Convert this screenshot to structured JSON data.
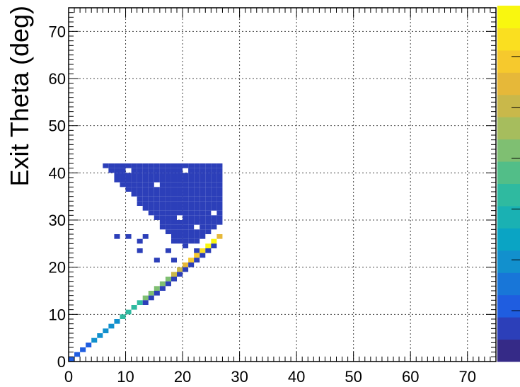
{
  "chart_data": {
    "type": "heatmap",
    "title": "",
    "xlabel": "",
    "ylabel": "Exit Theta (deg)",
    "xlim": [
      0,
      75
    ],
    "ylim": [
      0,
      75
    ],
    "bin_width": 1,
    "xticks": [
      "0",
      "10",
      "20",
      "30",
      "40",
      "50",
      "60",
      "70"
    ],
    "yticks": [
      "0",
      "10",
      "20",
      "30",
      "40",
      "50",
      "60",
      "70"
    ],
    "grid": true,
    "colormap": [
      "#352a87",
      "#2c3fb9",
      "#1f5de0",
      "#1876d8",
      "#1290cd",
      "#0aa4c4",
      "#1ab1b3",
      "#2fbaa0",
      "#52be88",
      "#7fbf72",
      "#a6bd5d",
      "#c9b84a",
      "#e6b839",
      "#f6c92d",
      "#fadf20",
      "#f9f70f"
    ],
    "body_color": "#2c3fb9",
    "region": {
      "x_range": [
        6,
        27
      ],
      "y_range": [
        23,
        42
      ],
      "upper_edge_y": 41,
      "lower_edge": [
        {
          "x": 6,
          "y": 41
        },
        {
          "x": 8,
          "y": 38
        },
        {
          "x": 10,
          "y": 36
        },
        {
          "x": 12,
          "y": 33
        },
        {
          "x": 14,
          "y": 31
        },
        {
          "x": 16,
          "y": 28
        },
        {
          "x": 18,
          "y": 25
        },
        {
          "x": 20,
          "y": 24
        },
        {
          "x": 22,
          "y": 25
        },
        {
          "x": 24,
          "y": 27
        },
        {
          "x": 26,
          "y": 29
        },
        {
          "x": 27,
          "y": 30
        }
      ],
      "empty_cells": [
        [
          10,
          40
        ],
        [
          15,
          37
        ],
        [
          20,
          40
        ],
        [
          19,
          30
        ],
        [
          25,
          31
        ],
        [
          22,
          28
        ],
        [
          26,
          27
        ],
        [
          24,
          26
        ]
      ]
    },
    "isolated_cells": [
      {
        "x": 8,
        "y": 26
      },
      {
        "x": 10,
        "y": 26
      },
      {
        "x": 12,
        "y": 25
      },
      {
        "x": 13,
        "y": 26
      },
      {
        "x": 12,
        "y": 23
      },
      {
        "x": 17,
        "y": 23
      },
      {
        "x": 15,
        "y": 21
      },
      {
        "x": 18,
        "y": 21
      },
      {
        "x": 22,
        "y": 23
      }
    ],
    "diagonal": {
      "x_range": [
        0,
        27
      ],
      "intensity_peak_x": [
        18,
        25
      ],
      "offset_band": {
        "x_range": [
          13,
          26
        ],
        "dy": -1
      }
    }
  }
}
